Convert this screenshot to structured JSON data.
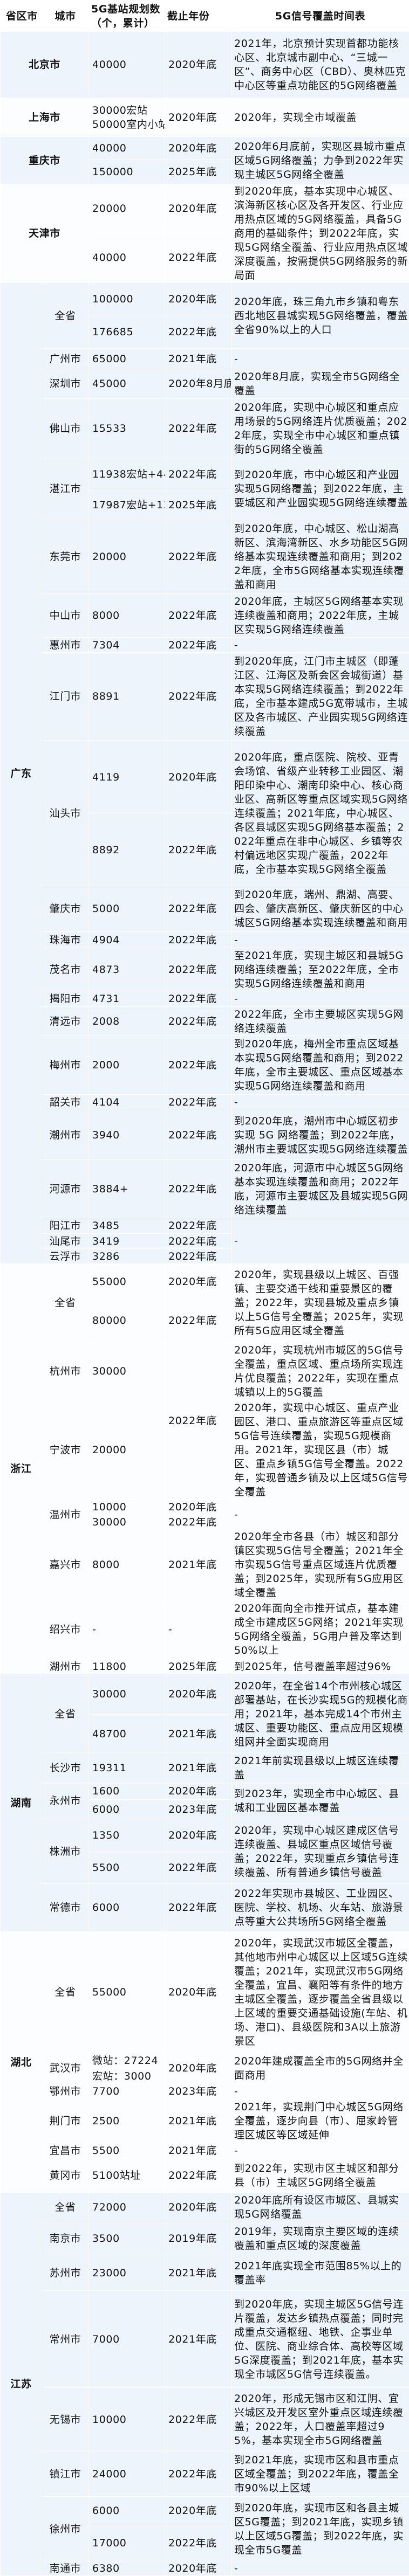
{
  "header": {
    "province": "省区市",
    "city": "城市",
    "stations": "5G基站规划数（个，累计）",
    "year": "截止年份",
    "coverage": "5G信号覆盖时间表"
  },
  "colors": {
    "row_blue": "#edf4fb",
    "row_white": "#fbfdfe",
    "border": "#ffffff"
  },
  "groups": [
    {
      "name": "北京市",
      "municipal": true,
      "cities": [
        {
          "stations": "40000",
          "years": "2020年底",
          "coverage": "2021年，北京预计实现首都功能核心区、北京城市副中心、“三城一区”、商务中心区（CBD）、奥林匹克中心区等重点功能区的5G网络覆盖"
        }
      ]
    },
    {
      "name": "上海市",
      "municipal": true,
      "cities": [
        {
          "stations_lines": [
            "30000宏站",
            "50000室内小站"
          ],
          "years": "2020年底",
          "coverage": "2020年，实现全市域覆盖"
        }
      ]
    },
    {
      "name": "重庆市",
      "municipal": true,
      "cities": [
        {
          "stations": [
            "40000",
            "150000"
          ],
          "years": [
            "2020年底",
            "2025年底"
          ],
          "coverage": "2020年6月底前，实现区县城市重点区域5G网络覆盖；力争到2022年实现主城区5G网络全覆盖"
        }
      ]
    },
    {
      "name": "天津市",
      "municipal": true,
      "cities": [
        {
          "stations": [
            "20000",
            "40000"
          ],
          "years": [
            "2020年底",
            "2022年底"
          ],
          "coverage": "到2020年底，基本实现中心城区、滨海新区核心区及各开发区、行业应用热点区域的5G网络覆盖，具备5G商用的基础条件；到2022年底，实现5G网络全覆盖、行业应用热点区域深度覆盖，按需提供5G网络服务的新局面"
        }
      ]
    },
    {
      "name": "广东",
      "cities": [
        {
          "city": "全省",
          "stations": [
            "100000",
            "176685"
          ],
          "years": [
            "2020年底",
            "2022年底"
          ],
          "coverage": "2020年底，珠三角九市乡镇和粤东西北地区县城实现5G网络覆盖，覆盖全省90%以上的人口"
        },
        {
          "city": "广州市",
          "stations": "65000",
          "years": "2021年底",
          "coverage": "-"
        },
        {
          "city": "深圳市",
          "stations": "45000",
          "years": "2020年8月底",
          "coverage": "2020年8月底，实现全市5G网络全覆盖"
        },
        {
          "city": "佛山市",
          "stations": "15533",
          "years": "2022年底",
          "coverage": "2020年底，实现中心城区和重点应用场景的5G网络连片优质覆盖；2022年底，实现全市中心城区和重点镇街的5G网络全覆盖"
        },
        {
          "city": "湛江市",
          "stations": [
            "11938宏站+4431微站",
            "17987宏站+12011微站"
          ],
          "years": [
            "2022年底",
            "2025年底"
          ],
          "coverage": "到2020年底，市中心城区和产业园实现5G网络覆盖；到2022年底，主要城区和产业园实现5G网络连续覆盖"
        },
        {
          "city": "东莞市",
          "stations": "20000",
          "years": "2022年底",
          "coverage": "到2020年底，中心城区、松山湖高新区、滨海湾新区、水乡功能区5G网络基本实现连续覆盖和商用；到2022年底，全市5G网络基本实现连续覆盖和商用"
        },
        {
          "city": "中山市",
          "stations": "8000",
          "years": "2022年底",
          "coverage": "2020年底，主城区5G网络基本实现连续覆盖和商用；2022年底，主城区实现5G网络连续覆盖"
        },
        {
          "city": "惠州市",
          "stations": "7304",
          "years": "2022年底",
          "coverage": "-"
        },
        {
          "city": "江门市",
          "stations": "8891",
          "years": "2022年底",
          "coverage": "到2020年底，江门市主城区（即蓬江区、江海区及新会区会城街道）基本实现5G网络连续覆盖；到2022年底，全市基本建成5G宽带城市，主城区及各市城区、产业园实现5G网络连续覆盖"
        },
        {
          "city": "汕头市",
          "stations": [
            "4119",
            "8892"
          ],
          "years": [
            "2020年底",
            "2022年底"
          ],
          "coverage": "2020年底，重点医院、院校、亚青会场馆、省级产业转移工业园区、潮阳印染中心、潮南印染中心、核心商业区、高新区等重点区域实现5G网络连续覆盖；2021年底，中心城区、各区县城区实现5G网络基本覆盖；2022年重点在非中心城区、乡镇等农村偏远地区实现广覆盖，2022年底，全市基本实现5G网络全覆盖"
        },
        {
          "city": "肇庆市",
          "stations": "5000",
          "years": "2022年底",
          "coverage": "到2020年底，端州、鼎湖、高要、四会、肇庆高新区、肇庆新区的中心城区5G网络基本实现连续覆盖和商用"
        },
        {
          "city": "珠海市",
          "stations": "4904",
          "years": "2022年底",
          "coverage": "-"
        },
        {
          "city": "茂名市",
          "stations": "4873",
          "years": "2022年底",
          "coverage": "至2021年底，实现主城区和县城5G网络连续覆盖；至2022年底，全市实现5G网络连续覆盖和商用"
        },
        {
          "city": "揭阳市",
          "stations": "4731",
          "years": "2022年底",
          "coverage": "-"
        },
        {
          "city": "清远市",
          "stations": "2008",
          "years": "2022年底",
          "coverage": "2022年底，全市主要城区实现5G网络连续覆盖"
        },
        {
          "city": "梅州市",
          "stations": "2000",
          "years": "2022年底",
          "coverage": "到2020年底，梅州全市重点区域基本实现5G网络覆盖和商用；到2022年底，全市主要城区、重点区域基本实现5G网络连续覆盖和商用"
        },
        {
          "city": "韶关市",
          "stations": "4104",
          "years": "2022年底",
          "coverage": "-"
        },
        {
          "city": "潮州市",
          "stations": "3940",
          "years": "2022年底",
          "coverage": "到2020年底，潮州市中心城区初步实现 5G 网络覆盖；到2022年底，潮州市主要城区实现5G网络连续覆盖"
        },
        {
          "city": "河源市",
          "stations": "3884+",
          "years": "2022年底",
          "coverage": "2020年底，河源市中心城区5G网络基本实现连续覆盖和商用；2022年底，河源市主要城区及县城实现5G网络连续覆盖"
        },
        {
          "city": "阳江市",
          "stations": "3485",
          "years": "2022年底",
          "coverage": "-"
        },
        {
          "city": "汕尾市",
          "stations": "3419",
          "years": "2022年底"
        },
        {
          "city": "云浮市",
          "stations": "3286",
          "years": "2022年底"
        }
      ]
    },
    {
      "name": "浙江",
      "cities": [
        {
          "city": "全省",
          "stations": [
            "55000",
            "80000"
          ],
          "years": [
            "2020年底",
            "2022年底"
          ],
          "coverage": "2020年，实现县级以上城区、百强镇、主要交通干线和重要景区的覆盖；2022年，实现县城及重点乡镇以上5G信号全覆盖；2025年，实现所有5G应用区域全覆盖"
        },
        {
          "city": "杭州市",
          "stations": "30000",
          "years": "2022年底",
          "coverage": "2020年，实现杭州市城区的5G信号全覆盖，重点区域、重点场所实现连片优良覆盖；2022年，实现在重点城镇以上的5G覆盖"
        },
        {
          "city": "宁波市",
          "stations": "20000",
          "coverage": "2020年，实现中心城区、重点产业园区、港口、重点旅游区等重点区域5G信号连续覆盖，实现5G规模商用。2021年，实现区县（市）城区、重点乡镇5G信号全覆盖。2022年，实现普通乡镇及以上区域5G信号全覆盖"
        },
        {
          "city": "温州市",
          "stations": [
            "10000",
            "30000"
          ],
          "years": [
            "2020年底",
            "2022年底"
          ],
          "coverage": "-"
        },
        {
          "city": "嘉兴市",
          "stations": "8000",
          "years": "2021年底",
          "coverage": "2020年全市各县（市）城区和部分镇区实现5G信号全覆盖；2021年全市实现5G信号重点区域连片优质覆盖；到2025年，实现所有5G应用区域全覆盖"
        },
        {
          "city": "绍兴市",
          "stations": "-",
          "years": "-",
          "coverage": "2020年面向全市推开试点，基本建成全市建成区5G网络；2021年实现5G网络全覆盖，5G用户普及率达到50%以上"
        },
        {
          "city": "湖州市",
          "stations": "11800",
          "years": "2025年底",
          "coverage": "到2025年，信号覆盖率超过96%"
        }
      ]
    },
    {
      "name": "湖南",
      "cities": [
        {
          "city": "全省",
          "stations": [
            "30000",
            "48700"
          ],
          "years": [
            "2020年底",
            "2021年底"
          ],
          "coverage": "2020年，在全省14个市州核心城区部署基站，在长沙实现5G的规模化商用；2021年，基本完成14个市州主城区、重要功能区、重点应用区规模组网并全面实现商用"
        },
        {
          "city": "长沙市",
          "stations": "19311",
          "years": "2021年底",
          "coverage": "2021年前实现县级以上城区连续覆盖"
        },
        {
          "city": "永州市",
          "stations": [
            "1600",
            "6000"
          ],
          "years": [
            "2020年底",
            "2023年底"
          ],
          "coverage": "到2023年，实现全市中心城区、县城和工业园区基本覆盖"
        },
        {
          "city": "株洲市",
          "stations": [
            "1350",
            "5500"
          ],
          "years": [
            "2020年底",
            "2022年底"
          ],
          "coverage": "2020年，实现中心城区建成区信号连续覆盖、县城区重点区域信号覆盖；2022年，实现重点乡镇信号连续覆盖、所有普通乡镇信号覆盖"
        },
        {
          "city": "常德市",
          "stations": "6000",
          "years": "2022年底",
          "coverage": "2022年实现市县城区、工业园区、医院、学校、机场、火车站、旅游景点等重大公共场所5G网络全覆盖"
        }
      ]
    },
    {
      "name": "湖北",
      "cities": [
        {
          "city": "全省",
          "stations": "55000",
          "years": "2020年底",
          "coverage": "2020年，实现武汉市城区全覆盖，其他地市州中心城区以上区域5G连续覆盖；2021年，实现武汉市5G网络全覆盖，宜昌、襄阳等有条件的地方主城区全覆盖，逐步覆盖全省县级以上区域的重要交通基础设施(车站、机场、港口)、县级医院和3A以上旅游景区"
        },
        {
          "city": "武汉市",
          "stations": [
            "微站：27224",
            "宏站：3000"
          ],
          "years": "2020年底",
          "coverage": "2020年建成覆盖全市的5G网络并全面商用"
        },
        {
          "city": "鄂州市",
          "stations": "7700",
          "years": "2023年底",
          "coverage": "-"
        },
        {
          "city": "荆门市",
          "stations": "2500",
          "years": "2021年底",
          "coverage": "2021年，实现荆门中心城区5G网络全覆盖，逐步向县（市）、屈家岭管理区城区等区域延伸"
        },
        {
          "city": "宜昌市",
          "stations": "5500",
          "years": "2021年底",
          "coverage": "-"
        },
        {
          "city": "黄冈市",
          "stations": "5100站址",
          "years": "2022年底",
          "coverage": "到2022年，实现市区主城区和部分县（市）主城区5G网络全覆盖"
        }
      ]
    },
    {
      "name": "江苏",
      "cities": [
        {
          "city": "全省",
          "stations": "72000",
          "years": "2020年底",
          "coverage": "2020年底所有设区市城区、县城实现5G网络覆盖"
        },
        {
          "city": "南京市",
          "stations": "3500",
          "years": "2019年底",
          "coverage": "2019年，实现南京主要区域的连续覆盖和重点区域的深度覆盖"
        },
        {
          "city": "苏州市",
          "stations": "23000",
          "years": "2021年底",
          "coverage": "2021年底实现全市范围85%以上的覆盖率"
        },
        {
          "city": "常州市",
          "stations": "7000",
          "years": "2021年底",
          "coverage": "到2020年底，实现主城区5G信号连片覆盖，发达乡镇热点覆盖；同时完成重点交通枢纽、地铁、企事业单位、医院、商业综合体、高校等区域5G深度覆盖；到2021年底，基本实现全市城区5G信号连续覆盖。"
        },
        {
          "city": "无锡市",
          "stations": "10000",
          "years": "2022年底",
          "coverage": "2020年，形成无锡市区和江阴、宜兴城区及开发区室外重点区域连续覆盖；2022年，人口覆盖率超过95%，基本实现全市5G网络覆盖"
        },
        {
          "city": "镇江市",
          "stations": "24000",
          "years": "2022年底",
          "coverage": "到2021年底，实现市区和县市重点区域全覆盖；到2022年底，覆盖全市90%以上区域"
        },
        {
          "city": "徐州市",
          "stations": [
            "6000",
            "17000"
          ],
          "years": [
            "2020年底",
            "2022年底"
          ],
          "coverage": "到2020年底，实现市区和各县主城区5G覆盖；到2021年底，实现乡镇以上区域5G覆盖；到2022年底，实现全市5G覆盖"
        },
        {
          "city": "南通市",
          "stations": "6380",
          "years": "2020年底",
          "coverage": "-"
        }
      ]
    }
  ]
}
